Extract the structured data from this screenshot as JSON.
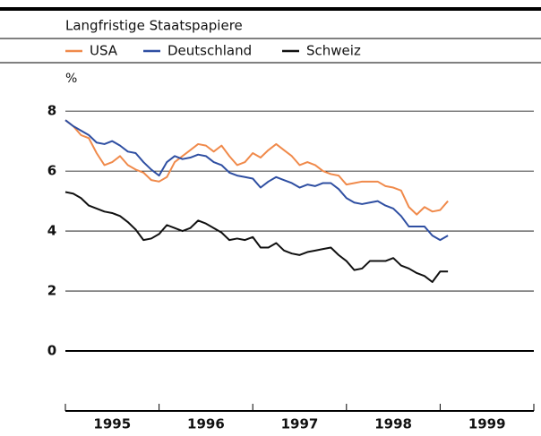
{
  "chart_data": {
    "type": "line",
    "title": "Langfristige Staatspapiere",
    "y_label": "%",
    "categories": [
      "1995",
      "1996",
      "1997",
      "1998",
      "1999"
    ],
    "x": [
      0,
      1,
      2,
      3,
      4,
      5,
      6,
      7,
      8,
      9,
      10,
      11,
      12,
      13,
      14,
      15,
      16,
      17,
      18,
      19,
      20,
      21,
      22,
      23,
      24,
      25,
      26,
      27,
      28,
      29,
      30,
      31,
      32,
      33,
      34,
      35,
      36,
      37,
      38,
      39,
      40,
      41,
      42,
      43,
      44,
      45,
      46,
      47,
      48,
      49
    ],
    "xlim": [
      0,
      60
    ],
    "xticks": [
      0,
      12,
      24,
      36,
      48,
      60
    ],
    "ylim": [
      -2,
      8.75
    ],
    "yticks": [
      0,
      2,
      4,
      6,
      8
    ],
    "grid": true,
    "series": [
      {
        "name": "USA",
        "color": "#f08a4b",
        "values": [
          7.7,
          7.5,
          7.2,
          7.1,
          6.6,
          6.2,
          6.3,
          6.5,
          6.2,
          6.05,
          5.95,
          5.7,
          5.65,
          5.8,
          6.3,
          6.5,
          6.7,
          6.9,
          6.85,
          6.65,
          6.85,
          6.5,
          6.2,
          6.3,
          6.6,
          6.45,
          6.7,
          6.9,
          6.7,
          6.5,
          6.2,
          6.3,
          6.2,
          6.0,
          5.9,
          5.85,
          5.55,
          5.6,
          5.65,
          5.65,
          5.65,
          5.5,
          5.45,
          5.35,
          4.8,
          4.55,
          4.8,
          4.65,
          4.7,
          5.0
        ]
      },
      {
        "name": "Deutschland",
        "color": "#2f4fa2",
        "values": [
          7.7,
          7.5,
          7.35,
          7.2,
          6.95,
          6.9,
          7.0,
          6.85,
          6.65,
          6.6,
          6.3,
          6.05,
          5.85,
          6.3,
          6.5,
          6.4,
          6.45,
          6.55,
          6.5,
          6.3,
          6.2,
          5.95,
          5.85,
          5.8,
          5.75,
          5.45,
          5.65,
          5.8,
          5.7,
          5.6,
          5.45,
          5.55,
          5.5,
          5.6,
          5.6,
          5.4,
          5.1,
          4.95,
          4.9,
          4.95,
          5.0,
          4.85,
          4.75,
          4.5,
          4.15,
          4.15,
          4.15,
          3.85,
          3.7,
          3.85
        ]
      },
      {
        "name": "Schweiz",
        "color": "#111111",
        "values": [
          5.3,
          5.25,
          5.1,
          4.85,
          4.75,
          4.65,
          4.6,
          4.5,
          4.3,
          4.05,
          3.7,
          3.75,
          3.9,
          4.2,
          4.1,
          4.0,
          4.1,
          4.35,
          4.25,
          4.1,
          3.95,
          3.7,
          3.75,
          3.7,
          3.8,
          3.45,
          3.45,
          3.6,
          3.35,
          3.25,
          3.2,
          3.3,
          3.35,
          3.4,
          3.45,
          3.2,
          3.0,
          2.7,
          2.75,
          3.0,
          3.0,
          3.0,
          3.1,
          2.85,
          2.75,
          2.6,
          2.5,
          2.3,
          2.65,
          2.65
        ]
      }
    ]
  }
}
